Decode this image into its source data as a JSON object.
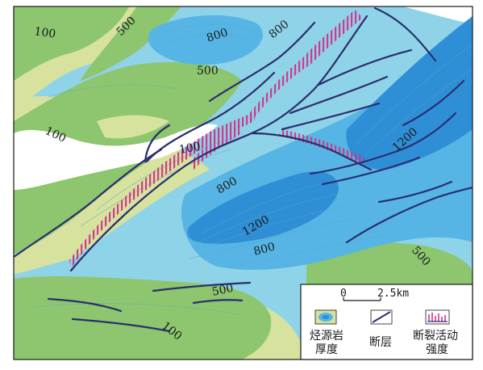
{
  "contour_labels": {
    "c100_top": "100",
    "c500_top": "500",
    "c800_top": "800",
    "c800_top2": "800",
    "c500_mid": "500",
    "c100_left": "100",
    "c100_center": "100",
    "c1200_right": "1200",
    "c800_center": "800",
    "c1200_center": "1200",
    "c800_lower": "800",
    "c500_lowright": "500",
    "c500_bottom": "500",
    "c100_bottom": "100"
  },
  "scale": {
    "zero": "0",
    "distance": "2.5km"
  },
  "legend": {
    "thickness_line1": "烃源岩",
    "thickness_line2": "厚度",
    "fault": "断层",
    "activity_line1": "断裂活动",
    "activity_line2": "强度"
  },
  "colors": {
    "pale_green": "#d6e29e",
    "green": "#8dc66e",
    "light_blue": "#8fd3e8",
    "mid_blue": "#56b5e4",
    "deep_blue": "#2f8fd6",
    "fault": "#2a2e6e",
    "activity": "#d0338a"
  }
}
